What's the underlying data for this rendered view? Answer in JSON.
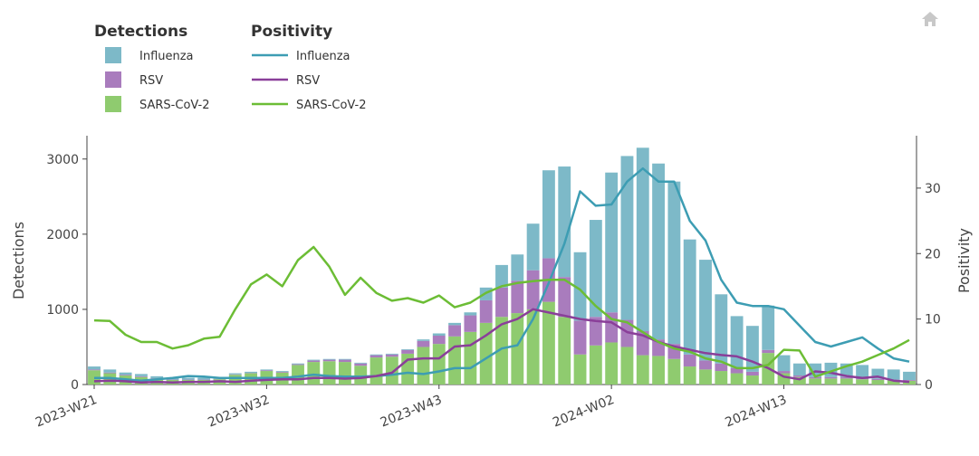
{
  "chart_data": {
    "type": "combo",
    "legend_titles": [
      "Detections",
      "Positivity"
    ],
    "y_label": "Detections",
    "y2_label": "Positivity",
    "categories": [
      "2023-W21",
      null,
      null,
      null,
      null,
      null,
      null,
      null,
      null,
      null,
      null,
      "2023-W32",
      null,
      null,
      null,
      null,
      null,
      null,
      null,
      null,
      null,
      null,
      "2023-W43",
      null,
      null,
      null,
      null,
      null,
      null,
      null,
      null,
      null,
      null,
      "2024-W02",
      null,
      null,
      null,
      null,
      null,
      null,
      null,
      null,
      null,
      null,
      "2024-W13",
      null,
      null,
      null,
      null,
      null,
      null,
      null,
      null
    ],
    "ylim": [
      0,
      3310
    ],
    "yticks": [
      0,
      1000,
      2000,
      3000
    ],
    "y2lim": [
      0,
      38
    ],
    "y2ticks": [
      0,
      10,
      20,
      30
    ],
    "series": [
      {
        "name": "Influenza",
        "type": "bar",
        "color": "#7db9c8",
        "values": [
          40,
          40,
          30,
          30,
          25,
          25,
          25,
          25,
          15,
          15,
          15,
          10,
          10,
          10,
          10,
          10,
          10,
          10,
          10,
          10,
          10,
          20,
          30,
          30,
          40,
          170,
          300,
          350,
          620,
          1170,
          1470,
          910,
          1290,
          1860,
          2180,
          2440,
          2340,
          2160,
          1530,
          1340,
          920,
          690,
          610,
          590,
          210,
          160,
          180,
          190,
          180,
          170,
          135,
          135,
          110
        ]
      },
      {
        "name": "RSV",
        "type": "bar",
        "color": "#a97cbd",
        "values": [
          10,
          10,
          10,
          10,
          5,
          5,
          5,
          5,
          5,
          5,
          5,
          10,
          10,
          10,
          20,
          20,
          30,
          30,
          30,
          30,
          50,
          80,
          110,
          150,
          220,
          300,
          390,
          430,
          520,
          580,
          530,
          450,
          380,
          400,
          360,
          320,
          220,
          200,
          160,
          120,
          100,
          70,
          50,
          40,
          30,
          20,
          20,
          20,
          20,
          20,
          15,
          10,
          10
        ]
      },
      {
        "name": "SARS-CoV-2",
        "type": "bar",
        "color": "#8fcb6f",
        "values": [
          190,
          150,
          120,
          100,
          80,
          60,
          60,
          60,
          70,
          130,
          150,
          180,
          160,
          260,
          300,
          310,
          300,
          250,
          360,
          370,
          410,
          500,
          540,
          640,
          700,
          820,
          900,
          950,
          1000,
          1100,
          900,
          400,
          520,
          560,
          500,
          390,
          380,
          340,
          240,
          200,
          180,
          150,
          120,
          420,
          150,
          100,
          80,
          80,
          80,
          70,
          60,
          55,
          50
        ]
      },
      {
        "name": "Influenza",
        "type": "line",
        "axis": "y2",
        "color": "#3d9db3",
        "values": [
          1,
          1,
          0.8,
          0.6,
          0.8,
          1,
          1.3,
          1.2,
          1,
          1,
          1,
          1,
          1,
          1.2,
          1.5,
          1.3,
          1.2,
          1.2,
          1.3,
          1.5,
          1.8,
          1.6,
          2,
          2.5,
          2.5,
          4,
          5.5,
          6,
          10,
          15.5,
          21.5,
          29.5,
          27.3,
          27.5,
          31,
          33,
          31,
          31,
          25,
          22,
          16,
          12.5,
          12,
          12,
          11.5,
          9,
          6.5,
          5.8,
          6.5,
          7.2,
          5.5,
          4,
          3.5
        ]
      },
      {
        "name": "RSV",
        "type": "line",
        "axis": "y2",
        "color": "#8a3f99",
        "values": [
          0.5,
          0.6,
          0.5,
          0.3,
          0.4,
          0.3,
          0.4,
          0.4,
          0.5,
          0.4,
          0.6,
          0.7,
          0.8,
          0.8,
          1,
          1,
          0.9,
          1,
          1.3,
          1.8,
          3.8,
          4,
          4,
          5.8,
          6,
          7.5,
          9.2,
          10,
          11.5,
          11,
          10.5,
          10,
          9.7,
          9.5,
          8,
          7.5,
          6.5,
          5.8,
          5.3,
          4.8,
          4.5,
          4.3,
          3.5,
          2.5,
          1.2,
          0.8,
          2,
          1.8,
          1.3,
          1,
          1.2,
          0.6,
          0.4
        ]
      },
      {
        "name": "SARS-CoV-2",
        "type": "line",
        "axis": "y2",
        "color": "#6cbd35",
        "values": [
          9.8,
          9.7,
          7.6,
          6.5,
          6.5,
          5.5,
          6,
          7,
          7.3,
          11.5,
          15.3,
          16.8,
          15,
          19,
          21,
          18,
          13.7,
          16.3,
          14,
          12.8,
          13.2,
          12.5,
          13.6,
          11.8,
          12.5,
          14,
          15,
          15.5,
          15.8,
          16,
          16,
          14.5,
          12,
          10,
          9.5,
          8,
          6.5,
          5.5,
          5,
          4,
          3.5,
          2.5,
          2.5,
          3,
          5.3,
          5.2,
          1.2,
          2,
          2.8,
          3.5,
          4.5,
          5.5,
          6.8
        ]
      }
    ]
  }
}
